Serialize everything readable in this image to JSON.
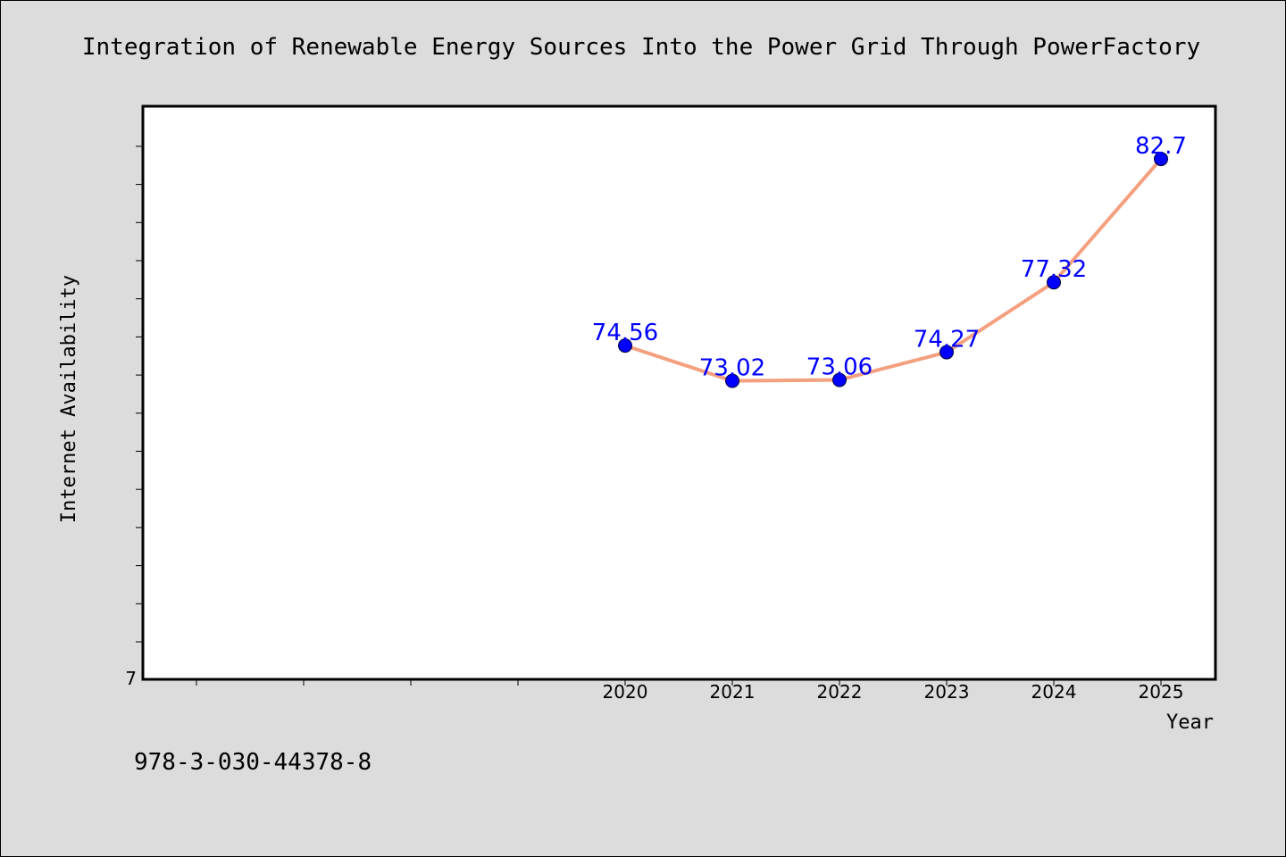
{
  "chart_data": {
    "type": "line",
    "title": "Integration of Renewable Energy Sources Into the Power Grid Through PowerFactory",
    "xlabel": "Year",
    "ylabel": "Internet Availability",
    "x": [
      "2020",
      "2021",
      "2022",
      "2023",
      "2024",
      "2025"
    ],
    "series": [
      {
        "values": [
          74.56,
          73.02,
          73.06,
          74.27,
          77.32,
          82.7
        ],
        "labels": [
          "74.56",
          "73.02",
          "73.06",
          "74.27",
          "77.32",
          "82.7"
        ]
      }
    ],
    "y_tick_labels": [
      "7"
    ],
    "ylim": [
      60,
      85
    ],
    "grid": false,
    "legend": "none",
    "colors": {
      "background": "#dcdcdc",
      "plot_area": "#ffffff",
      "line": "#f4a07f",
      "marker": "#0000ff",
      "data_label": "#0000ff"
    }
  },
  "footer": {
    "isbn": "978-3-030-44378-8"
  }
}
